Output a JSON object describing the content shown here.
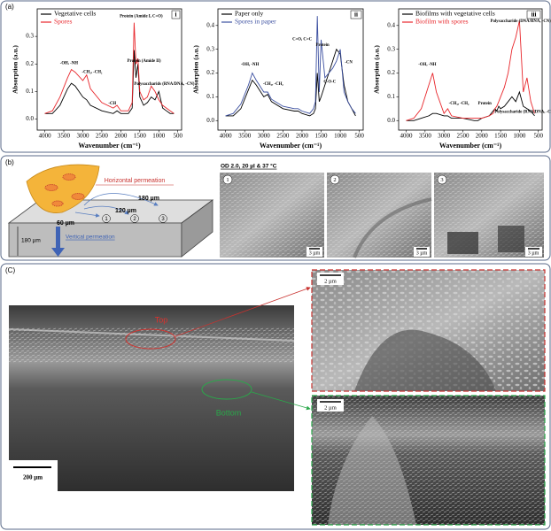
{
  "chart_data": [
    {
      "type": "line",
      "panel": "i",
      "x_label": "Wavenumber (cm⁻¹)",
      "y_label": "Absorption (a.u.)",
      "x": [
        4000,
        3800,
        3600,
        3400,
        3300,
        3200,
        3000,
        2900,
        2800,
        2500,
        2200,
        2100,
        2000,
        1800,
        1700,
        1650,
        1600,
        1550,
        1500,
        1400,
        1300,
        1200,
        1100,
        1000,
        900,
        800,
        700,
        600
      ],
      "series": [
        {
          "name": "Vegetative cells",
          "color": "#000000",
          "values": [
            0.02,
            0.02,
            0.05,
            0.11,
            0.13,
            0.12,
            0.08,
            0.07,
            0.05,
            0.03,
            0.02,
            0.03,
            0.02,
            0.02,
            0.04,
            0.25,
            0.15,
            0.2,
            0.08,
            0.05,
            0.06,
            0.08,
            0.07,
            0.1,
            0.04,
            0.03,
            0.02,
            0.02
          ]
        },
        {
          "name": "Spores",
          "color": "#e8262b",
          "values": [
            0.02,
            0.03,
            0.08,
            0.15,
            0.18,
            0.17,
            0.14,
            0.16,
            0.11,
            0.06,
            0.04,
            0.05,
            0.03,
            0.03,
            0.06,
            0.35,
            0.2,
            0.22,
            0.1,
            0.07,
            0.08,
            0.12,
            0.1,
            0.07,
            0.05,
            0.04,
            0.03,
            0.02
          ]
        }
      ],
      "xlim": [
        4200,
        400
      ],
      "xticks": [
        4000,
        3500,
        3000,
        2500,
        2000,
        1500,
        1000,
        500
      ],
      "ylim": [
        -0.04,
        0.4
      ],
      "yticks": [
        {
          "value": 0,
          "label": "0.0"
        },
        0.1,
        0.2,
        0.3
      ],
      "annotations": [
        "-OH, -NH",
        "-CH₃, -CH₂",
        "-CH",
        "Protein (Amide I, C=O)",
        "Protein (Amide II)",
        "Polysaccharids (RNA/DNA, -CN)"
      ]
    },
    {
      "type": "line",
      "panel": "ii",
      "x_label": "Wavenumber (cm⁻¹)",
      "y_label": "Absorption (a.u.)",
      "x": [
        4000,
        3800,
        3600,
        3400,
        3300,
        3200,
        3000,
        2900,
        2800,
        2500,
        2200,
        2100,
        2000,
        1800,
        1700,
        1650,
        1600,
        1550,
        1500,
        1400,
        1300,
        1200,
        1100,
        1000,
        900,
        800,
        700,
        600
      ],
      "series": [
        {
          "name": "Paper only",
          "color": "#000000",
          "values": [
            0.02,
            0.02,
            0.05,
            0.13,
            0.17,
            0.15,
            0.1,
            0.11,
            0.08,
            0.05,
            0.04,
            0.04,
            0.03,
            0.02,
            0.03,
            0.05,
            0.2,
            0.08,
            0.1,
            0.15,
            0.2,
            0.25,
            0.3,
            0.28,
            0.15,
            0.08,
            0.05,
            0.02
          ]
        },
        {
          "name": "Spores in paper",
          "color": "#3b4fa0",
          "values": [
            0.02,
            0.03,
            0.07,
            0.15,
            0.2,
            0.17,
            0.12,
            0.12,
            0.09,
            0.06,
            0.05,
            0.05,
            0.04,
            0.03,
            0.05,
            0.08,
            0.44,
            0.12,
            0.34,
            0.18,
            0.2,
            0.22,
            0.25,
            0.3,
            0.12,
            0.08,
            0.05,
            0.03
          ]
        }
      ],
      "xlim": [
        4200,
        400
      ],
      "xticks": [
        4000,
        3500,
        3000,
        2500,
        2000,
        1500,
        1000,
        500
      ],
      "ylim": [
        -0.04,
        0.47
      ],
      "yticks": [
        {
          "value": 0,
          "label": "0.0"
        },
        0.1,
        0.2,
        0.3,
        0.4
      ],
      "annotations": [
        "-OH, -NH",
        "-CH₃, -CH₂",
        "C=O, C=C",
        "Protein",
        "C-O-C",
        "-CN"
      ]
    },
    {
      "type": "line",
      "panel": "iii",
      "x_label": "Wavenumber (cm⁻¹)",
      "y_label": "Absorption (a.u.)",
      "x": [
        4000,
        3800,
        3600,
        3400,
        3300,
        3200,
        3000,
        2900,
        2800,
        2500,
        2200,
        2100,
        2000,
        1800,
        1700,
        1650,
        1600,
        1550,
        1500,
        1400,
        1300,
        1200,
        1100,
        1000,
        900,
        800,
        700,
        600
      ],
      "series": [
        {
          "name": "Biofilms with vegetative cells",
          "color": "#000000",
          "values": [
            0,
            0,
            0.01,
            0.02,
            0.03,
            0.03,
            0.02,
            0.02,
            0.01,
            0.01,
            0,
            0,
            0.01,
            0.02,
            0.04,
            0.05,
            0.04,
            0.06,
            0.05,
            0.06,
            0.08,
            0.1,
            0.08,
            0.12,
            0.06,
            0.05,
            0.04,
            0.02
          ]
        },
        {
          "name": "Biofilm with spores",
          "color": "#e8262b",
          "values": [
            0,
            0.01,
            0.05,
            0.15,
            0.2,
            0.12,
            0.03,
            0.05,
            0.02,
            0.01,
            0.01,
            0.01,
            0.01,
            0.02,
            0.03,
            0.05,
            0.06,
            0.08,
            0.1,
            0.14,
            0.2,
            0.3,
            0.35,
            0.42,
            0.12,
            0.18,
            0.08,
            0.03
          ]
        }
      ],
      "xlim": [
        4200,
        400
      ],
      "xticks": [
        4000,
        3500,
        3000,
        2500,
        2000,
        1500,
        1000,
        500
      ],
      "ylim": [
        -0.04,
        0.47
      ],
      "yticks": [
        {
          "value": 0,
          "label": "0.0"
        },
        0.1,
        0.2,
        0.3,
        0.4
      ],
      "annotations": [
        "-OH, -NH",
        "-CH₃, -CH₂",
        "Protein",
        "Polysaccharide (DNA/RNA, -CN)",
        "Polysaccharide (RNA/DNA, -CN)"
      ]
    }
  ],
  "panel_a": {
    "label": "(a)"
  },
  "panel_b": {
    "label": "(b)",
    "horizontal": "Horizontal permeation",
    "vertical": "Vertical permeation",
    "distances": [
      "60 µm",
      "120 µm",
      "180 µm"
    ],
    "thickness": "180 µm",
    "points": [
      "1",
      "2",
      "3"
    ],
    "condition": "OD 2.0, 20 µl & 37 °C",
    "images": [
      {
        "number": "1",
        "scale": "3 µm"
      },
      {
        "number": "2",
        "scale": "3 µm"
      },
      {
        "number": "3",
        "scale": "3 µm"
      }
    ]
  },
  "panel_c": {
    "label": "(C)",
    "top": "Top",
    "bottom": "Bottom",
    "scale": "200 µm",
    "top_scale": "2 µm",
    "bottom_scale": "2 µm"
  }
}
